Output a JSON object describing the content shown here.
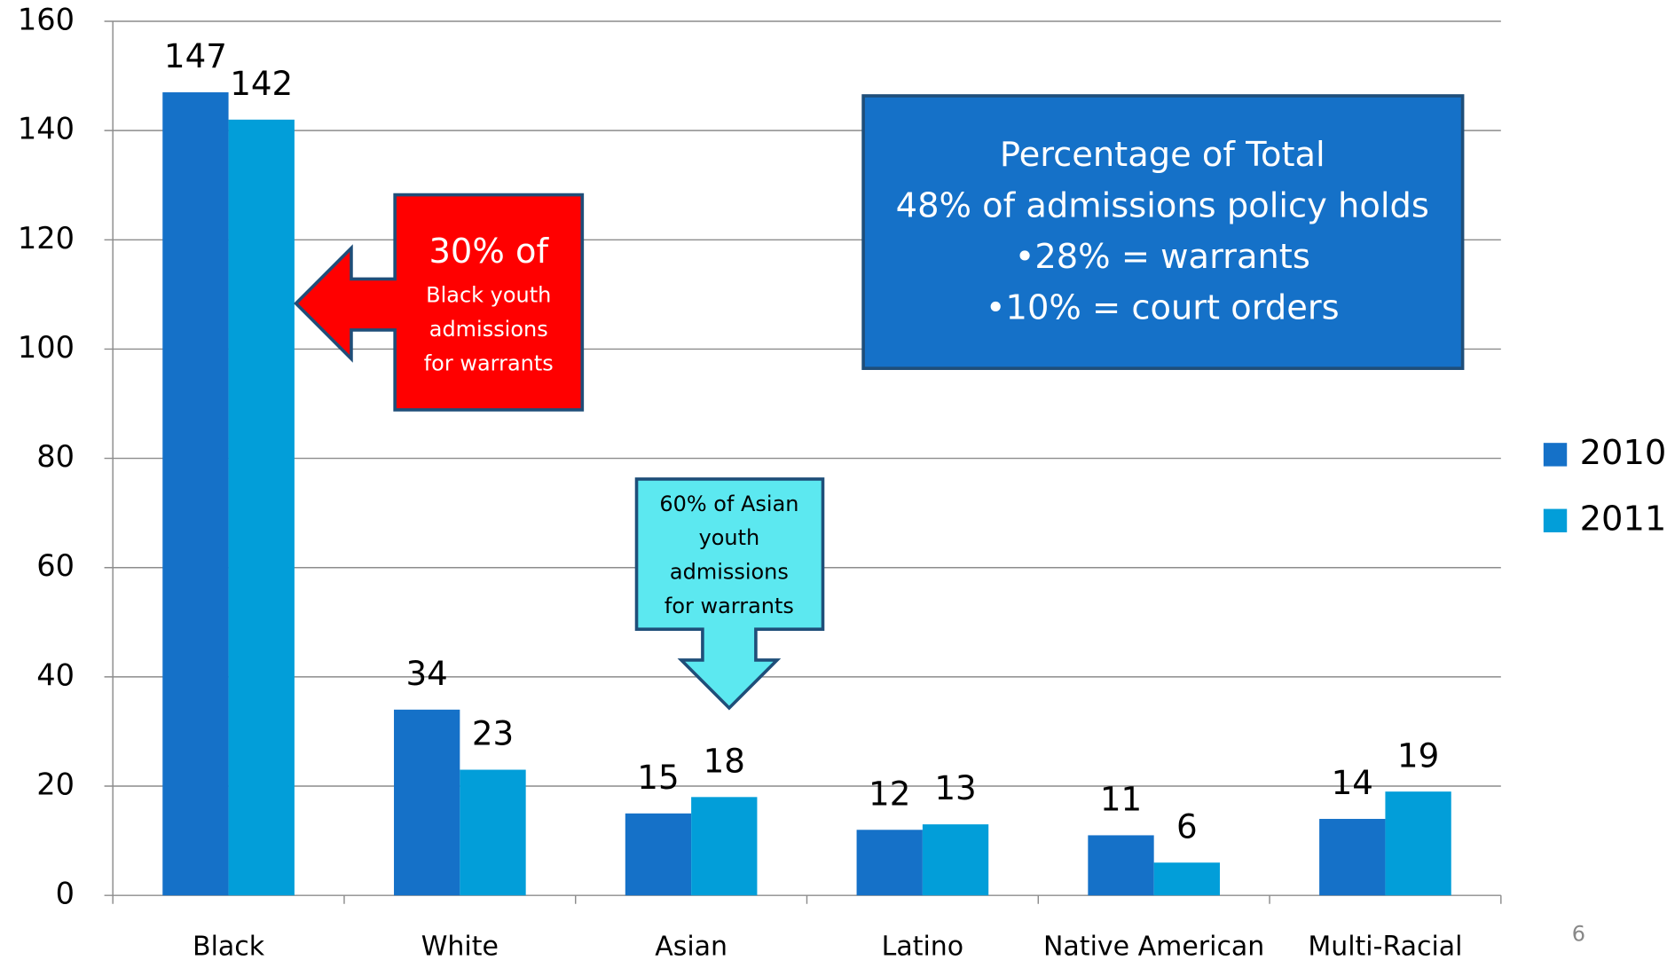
{
  "chart_data": {
    "type": "bar",
    "categories": [
      "Black",
      "White",
      "Asian",
      "Latino",
      "Native American",
      "Multi-Racial"
    ],
    "series": [
      {
        "name": "2010",
        "color": "#1571c8",
        "values": [
          147,
          34,
          15,
          12,
          11,
          14
        ]
      },
      {
        "name": "2011",
        "color": "#029ed9",
        "values": [
          142,
          23,
          18,
          13,
          6,
          19
        ]
      }
    ],
    "ylim": [
      0,
      160
    ],
    "yticks": [
      0,
      20,
      40,
      60,
      80,
      100,
      120,
      140,
      160
    ],
    "grid": true,
    "legend": "right",
    "annotations": {
      "black_callout": [
        "30% of",
        "Black youth",
        "admissions",
        "for warrants"
      ],
      "asian_callout": [
        "60% of Asian",
        "youth",
        "admissions",
        "for warrants"
      ],
      "summary": [
        "Percentage of Total",
        "48% of admissions policy holds",
        "•28% = warrants",
        "•10% = court orders"
      ]
    },
    "page_number": "6"
  }
}
